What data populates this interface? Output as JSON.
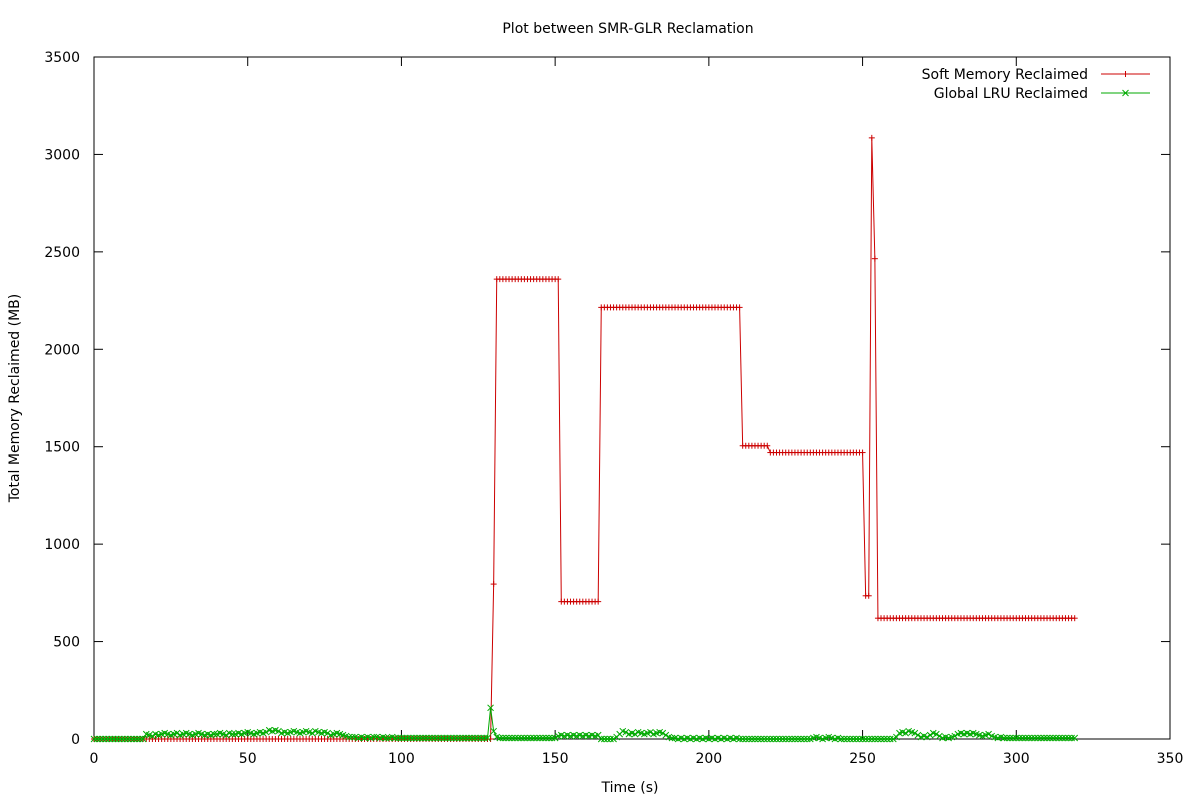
{
  "chart_data": {
    "type": "line",
    "title": "Plot between SMR-GLR Reclamation",
    "xlabel": "Time (s)",
    "ylabel": "Total Memory Reclaimed (MB)",
    "xlim": [
      0,
      350
    ],
    "ylim": [
      0,
      3500
    ],
    "xticks": [
      0,
      50,
      100,
      150,
      200,
      250,
      300,
      350
    ],
    "yticks": [
      0,
      500,
      1000,
      1500,
      2000,
      2500,
      3000,
      3500
    ],
    "grid": false,
    "legend_position": "top-right",
    "series": [
      {
        "name": "Soft Memory Reclaimed",
        "color": "#cc0000",
        "marker": "plus",
        "segments": [
          {
            "x_start": 0,
            "x_end": 129,
            "y": 0
          },
          {
            "x": 130,
            "y": 795
          },
          {
            "x_start": 131,
            "x_end": 151,
            "y": 2360
          },
          {
            "x_start": 152,
            "x_end": 164,
            "y": 705
          },
          {
            "x_start": 165,
            "x_end": 210,
            "y": 2215
          },
          {
            "x_start": 211,
            "x_end": 219,
            "y": 1505
          },
          {
            "x_start": 220,
            "x_end": 250,
            "y": 1470
          },
          {
            "x_start": 251,
            "x_end": 252,
            "y": 735
          },
          {
            "x": 253,
            "y": 3085
          },
          {
            "x": 254,
            "y": 2465
          },
          {
            "x_start": 255,
            "x_end": 319,
            "y": 620
          }
        ]
      },
      {
        "name": "Global LRU Reclaimed",
        "color": "#00aa00",
        "marker": "cross",
        "points": [
          [
            0,
            0
          ],
          [
            1,
            0
          ],
          [
            2,
            0
          ],
          [
            3,
            0
          ],
          [
            4,
            0
          ],
          [
            5,
            0
          ],
          [
            6,
            0
          ],
          [
            7,
            0
          ],
          [
            8,
            0
          ],
          [
            9,
            0
          ],
          [
            10,
            0
          ],
          [
            11,
            0
          ],
          [
            12,
            0
          ],
          [
            13,
            0
          ],
          [
            14,
            0
          ],
          [
            15,
            0
          ],
          [
            16,
            0
          ],
          [
            17,
            25
          ],
          [
            18,
            20
          ],
          [
            19,
            15
          ],
          [
            20,
            25
          ],
          [
            21,
            20
          ],
          [
            22,
            25
          ],
          [
            23,
            30
          ],
          [
            24,
            25
          ],
          [
            25,
            20
          ],
          [
            26,
            25
          ],
          [
            27,
            30
          ],
          [
            28,
            20
          ],
          [
            29,
            25
          ],
          [
            30,
            30
          ],
          [
            31,
            25
          ],
          [
            32,
            20
          ],
          [
            33,
            25
          ],
          [
            34,
            30
          ],
          [
            35,
            25
          ],
          [
            36,
            20
          ],
          [
            37,
            25
          ],
          [
            38,
            20
          ],
          [
            39,
            25
          ],
          [
            40,
            25
          ],
          [
            41,
            30
          ],
          [
            42,
            25
          ],
          [
            43,
            20
          ],
          [
            44,
            30
          ],
          [
            45,
            25
          ],
          [
            46,
            25
          ],
          [
            47,
            30
          ],
          [
            48,
            25
          ],
          [
            49,
            30
          ],
          [
            50,
            35
          ],
          [
            51,
            30
          ],
          [
            52,
            25
          ],
          [
            53,
            30
          ],
          [
            54,
            35
          ],
          [
            55,
            30
          ],
          [
            56,
            35
          ],
          [
            57,
            45
          ],
          [
            58,
            40
          ],
          [
            59,
            45
          ],
          [
            60,
            40
          ],
          [
            61,
            30
          ],
          [
            62,
            35
          ],
          [
            63,
            30
          ],
          [
            64,
            35
          ],
          [
            65,
            40
          ],
          [
            66,
            35
          ],
          [
            67,
            30
          ],
          [
            68,
            35
          ],
          [
            69,
            40
          ],
          [
            70,
            35
          ],
          [
            71,
            30
          ],
          [
            72,
            40
          ],
          [
            73,
            35
          ],
          [
            74,
            30
          ],
          [
            75,
            35
          ],
          [
            76,
            30
          ],
          [
            77,
            20
          ],
          [
            78,
            25
          ],
          [
            79,
            30
          ],
          [
            80,
            25
          ],
          [
            81,
            20
          ],
          [
            82,
            15
          ],
          [
            83,
            10
          ],
          [
            84,
            10
          ],
          [
            85,
            10
          ],
          [
            86,
            5
          ],
          [
            87,
            10
          ],
          [
            88,
            5
          ],
          [
            89,
            10
          ],
          [
            90,
            5
          ],
          [
            91,
            10
          ],
          [
            92,
            10
          ],
          [
            93,
            5
          ],
          [
            94,
            10
          ],
          [
            95,
            5
          ],
          [
            96,
            5
          ],
          [
            97,
            10
          ],
          [
            98,
            5
          ],
          [
            99,
            5
          ],
          [
            100,
            5
          ],
          [
            101,
            5
          ],
          [
            102,
            5
          ],
          [
            103,
            5
          ],
          [
            104,
            5
          ],
          [
            105,
            5
          ],
          [
            106,
            5
          ],
          [
            107,
            5
          ],
          [
            108,
            5
          ],
          [
            109,
            5
          ],
          [
            110,
            5
          ],
          [
            111,
            5
          ],
          [
            112,
            5
          ],
          [
            113,
            5
          ],
          [
            114,
            5
          ],
          [
            115,
            5
          ],
          [
            116,
            5
          ],
          [
            117,
            5
          ],
          [
            118,
            5
          ],
          [
            119,
            5
          ],
          [
            120,
            5
          ],
          [
            121,
            5
          ],
          [
            122,
            5
          ],
          [
            123,
            5
          ],
          [
            124,
            5
          ],
          [
            125,
            5
          ],
          [
            126,
            5
          ],
          [
            127,
            5
          ],
          [
            128,
            5
          ],
          [
            129,
            160
          ],
          [
            130,
            40
          ],
          [
            131,
            10
          ],
          [
            132,
            5
          ],
          [
            133,
            5
          ],
          [
            134,
            5
          ],
          [
            135,
            5
          ],
          [
            136,
            5
          ],
          [
            137,
            5
          ],
          [
            138,
            5
          ],
          [
            139,
            5
          ],
          [
            140,
            5
          ],
          [
            141,
            5
          ],
          [
            142,
            5
          ],
          [
            143,
            5
          ],
          [
            144,
            5
          ],
          [
            145,
            5
          ],
          [
            146,
            5
          ],
          [
            147,
            5
          ],
          [
            148,
            5
          ],
          [
            149,
            5
          ],
          [
            150,
            5
          ],
          [
            151,
            15
          ],
          [
            152,
            20
          ],
          [
            153,
            15
          ],
          [
            154,
            20
          ],
          [
            155,
            15
          ],
          [
            156,
            20
          ],
          [
            157,
            15
          ],
          [
            158,
            20
          ],
          [
            159,
            15
          ],
          [
            160,
            20
          ],
          [
            161,
            15
          ],
          [
            162,
            20
          ],
          [
            163,
            15
          ],
          [
            164,
            20
          ],
          [
            165,
            0
          ],
          [
            166,
            0
          ],
          [
            167,
            0
          ],
          [
            168,
            0
          ],
          [
            169,
            0
          ],
          [
            170,
            10
          ],
          [
            171,
            25
          ],
          [
            172,
            40
          ],
          [
            173,
            35
          ],
          [
            174,
            25
          ],
          [
            175,
            30
          ],
          [
            176,
            25
          ],
          [
            177,
            35
          ],
          [
            178,
            30
          ],
          [
            179,
            25
          ],
          [
            180,
            30
          ],
          [
            181,
            35
          ],
          [
            182,
            25
          ],
          [
            183,
            30
          ],
          [
            184,
            35
          ],
          [
            185,
            30
          ],
          [
            186,
            20
          ],
          [
            187,
            10
          ],
          [
            188,
            5
          ],
          [
            189,
            5
          ],
          [
            190,
            0
          ],
          [
            191,
            5
          ],
          [
            192,
            0
          ],
          [
            193,
            5
          ],
          [
            194,
            0
          ],
          [
            195,
            5
          ],
          [
            196,
            0
          ],
          [
            197,
            5
          ],
          [
            198,
            0
          ],
          [
            199,
            5
          ],
          [
            200,
            0
          ],
          [
            201,
            5
          ],
          [
            202,
            0
          ],
          [
            203,
            5
          ],
          [
            204,
            0
          ],
          [
            205,
            5
          ],
          [
            206,
            0
          ],
          [
            207,
            5
          ],
          [
            208,
            0
          ],
          [
            209,
            5
          ],
          [
            210,
            0
          ],
          [
            211,
            0
          ],
          [
            212,
            0
          ],
          [
            213,
            0
          ],
          [
            214,
            0
          ],
          [
            215,
            0
          ],
          [
            216,
            0
          ],
          [
            217,
            0
          ],
          [
            218,
            0
          ],
          [
            219,
            0
          ],
          [
            220,
            0
          ],
          [
            221,
            0
          ],
          [
            222,
            0
          ],
          [
            223,
            0
          ],
          [
            224,
            0
          ],
          [
            225,
            0
          ],
          [
            226,
            0
          ],
          [
            227,
            0
          ],
          [
            228,
            0
          ],
          [
            229,
            0
          ],
          [
            230,
            0
          ],
          [
            231,
            0
          ],
          [
            232,
            0
          ],
          [
            233,
            0
          ],
          [
            234,
            5
          ],
          [
            235,
            10
          ],
          [
            236,
            5
          ],
          [
            237,
            0
          ],
          [
            238,
            5
          ],
          [
            239,
            10
          ],
          [
            240,
            5
          ],
          [
            241,
            0
          ],
          [
            242,
            5
          ],
          [
            243,
            0
          ],
          [
            244,
            0
          ],
          [
            245,
            0
          ],
          [
            246,
            0
          ],
          [
            247,
            0
          ],
          [
            248,
            0
          ],
          [
            249,
            0
          ],
          [
            250,
            0
          ],
          [
            251,
            0
          ],
          [
            252,
            0
          ],
          [
            253,
            0
          ],
          [
            254,
            0
          ],
          [
            255,
            0
          ],
          [
            256,
            0
          ],
          [
            257,
            0
          ],
          [
            258,
            0
          ],
          [
            259,
            0
          ],
          [
            260,
            0
          ],
          [
            261,
            10
          ],
          [
            262,
            30
          ],
          [
            263,
            35
          ],
          [
            264,
            30
          ],
          [
            265,
            40
          ],
          [
            266,
            35
          ],
          [
            267,
            30
          ],
          [
            268,
            20
          ],
          [
            269,
            10
          ],
          [
            270,
            15
          ],
          [
            271,
            10
          ],
          [
            272,
            20
          ],
          [
            273,
            30
          ],
          [
            274,
            25
          ],
          [
            275,
            15
          ],
          [
            276,
            5
          ],
          [
            277,
            10
          ],
          [
            278,
            5
          ],
          [
            279,
            10
          ],
          [
            280,
            15
          ],
          [
            281,
            25
          ],
          [
            282,
            30
          ],
          [
            283,
            25
          ],
          [
            284,
            30
          ],
          [
            285,
            25
          ],
          [
            286,
            30
          ],
          [
            287,
            25
          ],
          [
            288,
            20
          ],
          [
            289,
            15
          ],
          [
            290,
            20
          ],
          [
            291,
            25
          ],
          [
            292,
            15
          ],
          [
            293,
            10
          ],
          [
            294,
            5
          ],
          [
            295,
            10
          ],
          [
            296,
            5
          ],
          [
            297,
            5
          ],
          [
            298,
            5
          ],
          [
            299,
            5
          ],
          [
            300,
            5
          ],
          [
            301,
            5
          ],
          [
            302,
            5
          ],
          [
            303,
            5
          ],
          [
            304,
            5
          ],
          [
            305,
            5
          ],
          [
            306,
            5
          ],
          [
            307,
            5
          ],
          [
            308,
            5
          ],
          [
            309,
            5
          ],
          [
            310,
            5
          ],
          [
            311,
            5
          ],
          [
            312,
            5
          ],
          [
            313,
            5
          ],
          [
            314,
            5
          ],
          [
            315,
            5
          ],
          [
            316,
            5
          ],
          [
            317,
            5
          ],
          [
            318,
            5
          ],
          [
            319,
            5
          ]
        ]
      }
    ]
  }
}
